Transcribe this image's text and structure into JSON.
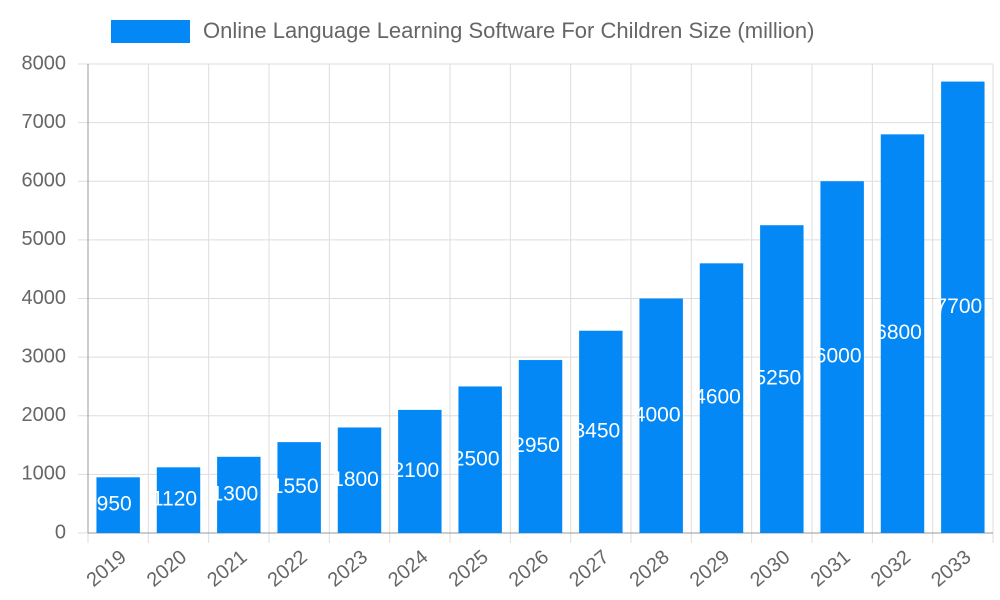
{
  "chart_data": {
    "type": "bar",
    "categories": [
      "2019",
      "2020",
      "2021",
      "2022",
      "2023",
      "2024",
      "2025",
      "2026",
      "2027",
      "2028",
      "2029",
      "2030",
      "2031",
      "2032",
      "2033"
    ],
    "series": [
      {
        "name": "Online Language Learning Software For Children Size (million)",
        "color": "#0388f5",
        "values": [
          950,
          1120,
          1300,
          1550,
          1800,
          2100,
          2500,
          2950,
          3450,
          4000,
          4600,
          5250,
          6000,
          6800,
          7700
        ]
      }
    ],
    "ylim": [
      0,
      8000
    ],
    "yticks": [
      0,
      1000,
      2000,
      3000,
      4000,
      5000,
      6000,
      7000,
      8000
    ],
    "grid": true
  }
}
